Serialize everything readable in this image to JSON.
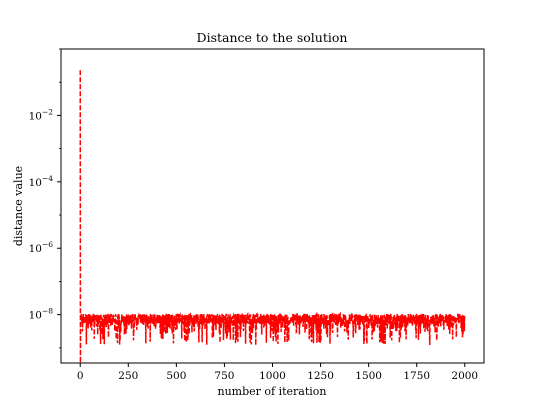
{
  "chart_data": {
    "type": "line",
    "title": "Distance to the solution",
    "xlabel": "number of iteration",
    "ylabel": "distance value",
    "xlim": [
      -100,
      2100
    ],
    "ylim": [
      3.5e-10,
      1.0
    ],
    "yscale": "log",
    "x_ticks": [
      0,
      250,
      500,
      750,
      1000,
      1250,
      1500,
      1750,
      2000
    ],
    "x_tick_labels": [
      "0",
      "250",
      "500",
      "750",
      "1000",
      "1250",
      "1500",
      "1750",
      "2000"
    ],
    "y_ticks": [
      1e-08,
      1e-06,
      0.0001,
      0.01
    ],
    "y_tick_labels": [
      {
        "base": "10",
        "exp": "−8"
      },
      {
        "base": "10",
        "exp": "−6"
      },
      {
        "base": "10",
        "exp": "−4"
      },
      {
        "base": "10",
        "exp": "−2"
      }
    ],
    "grid": false,
    "legend": "none",
    "series": [
      {
        "color": "#ff0000",
        "line_style": "dashed",
        "x_range": [
          0,
          1999
        ],
        "initial_points": [
          {
            "x": 0,
            "y": 0.23
          },
          {
            "x": 1,
            "y": 3.5e-10
          },
          {
            "x": 2,
            "y": 5e-09
          }
        ],
        "steady_band": {
          "low": 2.5e-09,
          "high": 1.1e-08,
          "typical": 7e-09,
          "min_spikes": 1.2e-09
        }
      }
    ]
  }
}
